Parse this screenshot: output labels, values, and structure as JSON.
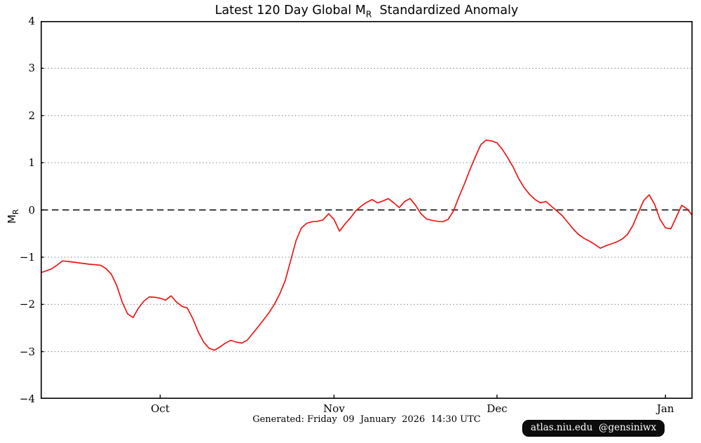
{
  "title": {
    "prefix": "Latest 120 Day Global M",
    "subscript": "R",
    "suffix": "  Standardized Anomaly"
  },
  "y_axis_label": {
    "main": "M",
    "subscript": "R"
  },
  "footer": {
    "generated_text": "Generated: Friday  09  January  2026  14:30 UTC"
  },
  "badge": {
    "text": "atlas.niu.edu  @gensiniwx",
    "bg_color": "#0c0c0c",
    "text_color": "#ffffff"
  },
  "chart_data": {
    "type": "line",
    "title": "Latest 120 Day Global MR Standardized Anomaly",
    "xlabel": "",
    "ylabel": "MR",
    "ylim": [
      -4,
      4
    ],
    "yticks": [
      -4,
      -3,
      -2,
      -1,
      0,
      1,
      2,
      3,
      4
    ],
    "grid": "horizontal dotted gray lines at every integer except 0",
    "zero_line": "horizontal black dashed line at 0",
    "legend": "none",
    "x_window_days": 120,
    "x_tick_labels": [
      "Oct",
      "Nov",
      "Dec",
      "Jan"
    ],
    "x_tick_positions_day": [
      22,
      54,
      84,
      115
    ],
    "line_color": "#f01515",
    "grid_color": "#808080",
    "series": [
      {
        "name": "MR standardized anomaly",
        "points": [
          [
            0,
            -1.33
          ],
          [
            2,
            -1.25
          ],
          [
            3,
            -1.17
          ],
          [
            4,
            -1.08
          ],
          [
            5,
            -1.09
          ],
          [
            7,
            -1.12
          ],
          [
            9,
            -1.15
          ],
          [
            11,
            -1.17
          ],
          [
            12,
            -1.24
          ],
          [
            13,
            -1.36
          ],
          [
            14,
            -1.6
          ],
          [
            15,
            -1.95
          ],
          [
            16,
            -2.2
          ],
          [
            17,
            -2.28
          ],
          [
            18,
            -2.08
          ],
          [
            19,
            -1.93
          ],
          [
            20,
            -1.84
          ],
          [
            21,
            -1.85
          ],
          [
            22,
            -1.87
          ],
          [
            23,
            -1.91
          ],
          [
            24,
            -1.82
          ],
          [
            25,
            -1.95
          ],
          [
            26,
            -2.04
          ],
          [
            27,
            -2.08
          ],
          [
            28,
            -2.3
          ],
          [
            29,
            -2.58
          ],
          [
            30,
            -2.8
          ],
          [
            31,
            -2.93
          ],
          [
            32,
            -2.97
          ],
          [
            33,
            -2.9
          ],
          [
            34,
            -2.82
          ],
          [
            35,
            -2.76
          ],
          [
            36,
            -2.8
          ],
          [
            37,
            -2.82
          ],
          [
            38,
            -2.76
          ],
          [
            39,
            -2.62
          ],
          [
            40,
            -2.48
          ],
          [
            41,
            -2.33
          ],
          [
            42,
            -2.18
          ],
          [
            43,
            -2.0
          ],
          [
            44,
            -1.78
          ],
          [
            45,
            -1.5
          ],
          [
            46,
            -1.08
          ],
          [
            47,
            -0.65
          ],
          [
            48,
            -0.38
          ],
          [
            49,
            -0.28
          ],
          [
            50,
            -0.25
          ],
          [
            51,
            -0.24
          ],
          [
            52,
            -0.21
          ],
          [
            53,
            -0.08
          ],
          [
            54,
            -0.2
          ],
          [
            55,
            -0.45
          ],
          [
            56,
            -0.3
          ],
          [
            57,
            -0.17
          ],
          [
            58,
            -0.02
          ],
          [
            59,
            0.08
          ],
          [
            60,
            0.16
          ],
          [
            61,
            0.22
          ],
          [
            62,
            0.15
          ],
          [
            63,
            0.19
          ],
          [
            64,
            0.24
          ],
          [
            65,
            0.15
          ],
          [
            66,
            0.05
          ],
          [
            67,
            0.18
          ],
          [
            68,
            0.24
          ],
          [
            69,
            0.1
          ],
          [
            70,
            -0.08
          ],
          [
            71,
            -0.19
          ],
          [
            72,
            -0.22
          ],
          [
            73,
            -0.24
          ],
          [
            74,
            -0.25
          ],
          [
            75,
            -0.2
          ],
          [
            76,
            -0.02
          ],
          [
            77,
            0.28
          ],
          [
            78,
            0.55
          ],
          [
            79,
            0.85
          ],
          [
            80,
            1.12
          ],
          [
            81,
            1.38
          ],
          [
            82,
            1.48
          ],
          [
            83,
            1.46
          ],
          [
            84,
            1.42
          ],
          [
            85,
            1.28
          ],
          [
            86,
            1.1
          ],
          [
            87,
            0.9
          ],
          [
            88,
            0.66
          ],
          [
            89,
            0.47
          ],
          [
            90,
            0.33
          ],
          [
            91,
            0.22
          ],
          [
            92,
            0.15
          ],
          [
            93,
            0.18
          ],
          [
            94,
            0.08
          ],
          [
            95,
            -0.02
          ],
          [
            96,
            -0.12
          ],
          [
            97,
            -0.26
          ],
          [
            98,
            -0.4
          ],
          [
            99,
            -0.52
          ],
          [
            100,
            -0.6
          ],
          [
            101,
            -0.66
          ],
          [
            102,
            -0.73
          ],
          [
            103,
            -0.81
          ],
          [
            104,
            -0.76
          ],
          [
            105,
            -0.72
          ],
          [
            106,
            -0.68
          ],
          [
            107,
            -0.62
          ],
          [
            108,
            -0.52
          ],
          [
            109,
            -0.33
          ],
          [
            110,
            -0.06
          ],
          [
            111,
            0.2
          ],
          [
            112,
            0.32
          ],
          [
            113,
            0.12
          ],
          [
            114,
            -0.2
          ],
          [
            115,
            -0.38
          ],
          [
            116,
            -0.4
          ],
          [
            117,
            -0.15
          ],
          [
            118,
            0.1
          ],
          [
            119,
            0.02
          ],
          [
            120,
            -0.12
          ]
        ]
      }
    ]
  }
}
